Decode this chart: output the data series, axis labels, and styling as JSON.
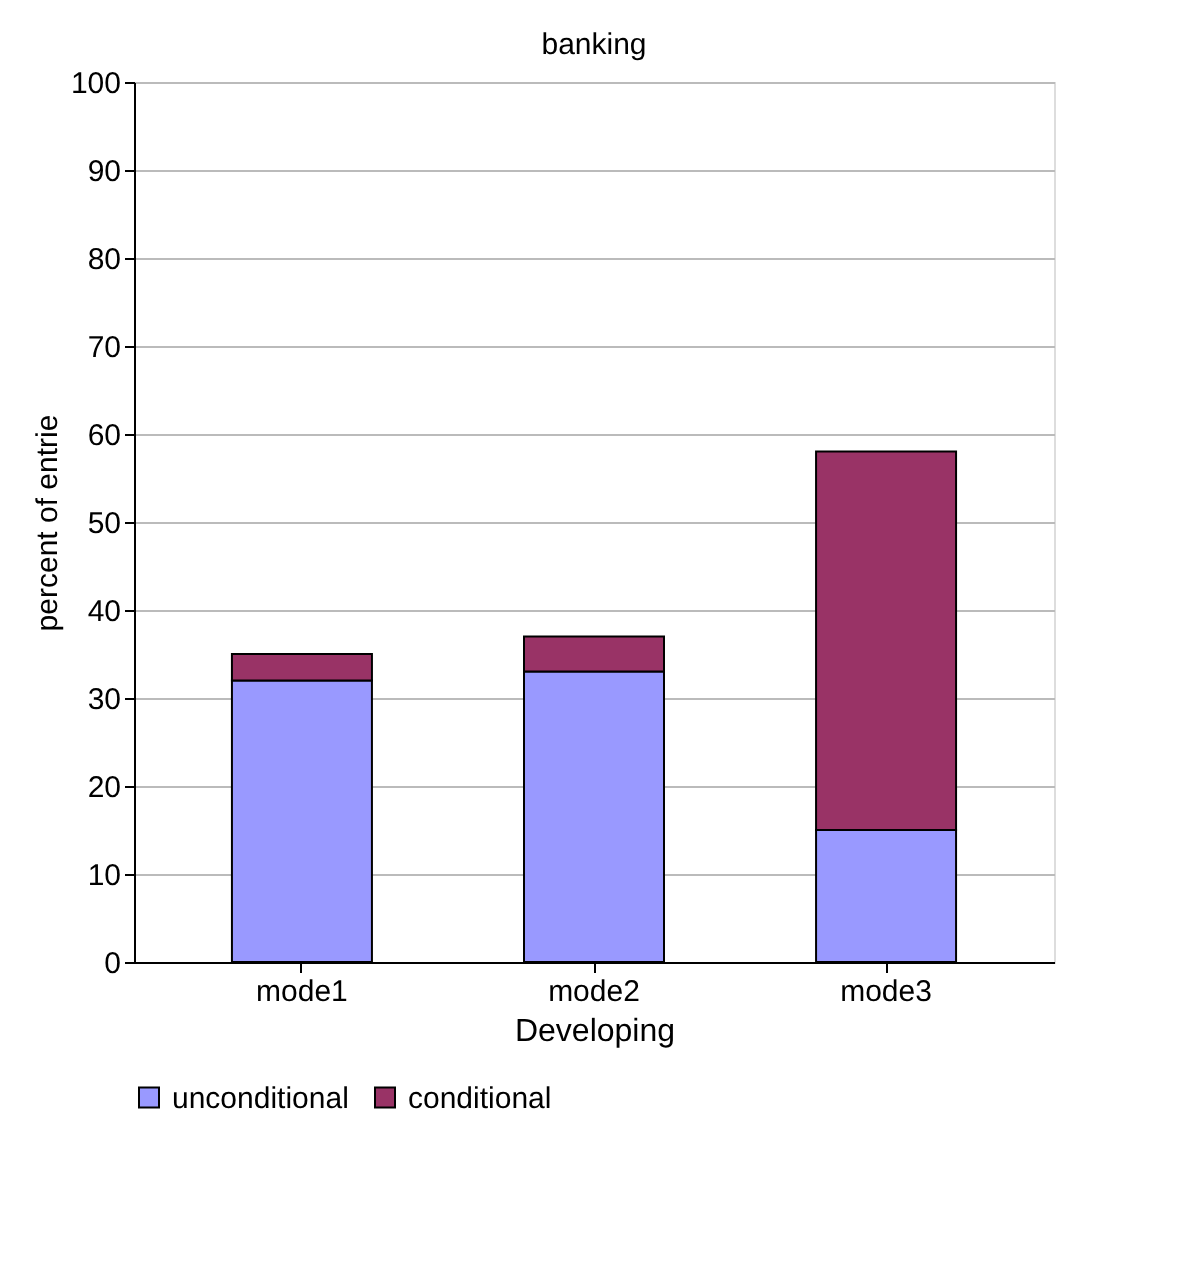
{
  "chart_data": {
    "type": "bar",
    "title": "banking",
    "xlabel": "Developing",
    "ylabel": "percent of entrie",
    "categories": [
      "mode1",
      "mode2",
      "mode3"
    ],
    "stacked": true,
    "series": [
      {
        "name": "unconditional",
        "color": "#9999ff",
        "values": [
          32,
          33,
          15
        ]
      },
      {
        "name": "conditional",
        "color": "#993366",
        "values": [
          3,
          4,
          43
        ]
      }
    ],
    "ylim": [
      0,
      100
    ],
    "yticks": [
      0,
      10,
      20,
      30,
      40,
      50,
      60,
      70,
      80,
      90,
      100
    ],
    "grid": "y",
    "legend": "bottom"
  }
}
